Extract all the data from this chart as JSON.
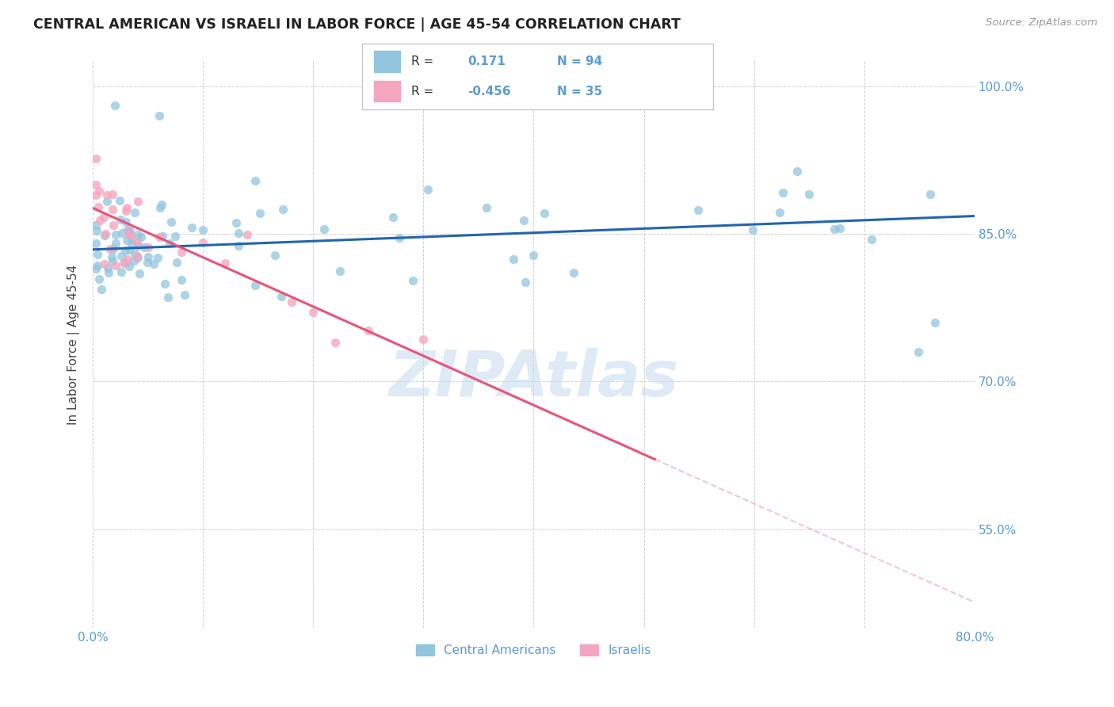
{
  "title": "CENTRAL AMERICAN VS ISRAELI IN LABOR FORCE | AGE 45-54 CORRELATION CHART",
  "source": "Source: ZipAtlas.com",
  "ylabel": "In Labor Force | Age 45-54",
  "x_min": 0.0,
  "x_max": 0.8,
  "y_min": 0.45,
  "y_max": 1.025,
  "y_ticks": [
    0.55,
    0.7,
    0.85,
    1.0
  ],
  "y_tick_labels": [
    "55.0%",
    "70.0%",
    "85.0%",
    "100.0%"
  ],
  "x_tick_pos": [
    0.0,
    0.1,
    0.2,
    0.3,
    0.4,
    0.5,
    0.6,
    0.7,
    0.8
  ],
  "x_tick_labels": [
    "0.0%",
    "",
    "",
    "",
    "",
    "",
    "",
    "",
    "80.0%"
  ],
  "blue_R": 0.171,
  "blue_N": 94,
  "pink_R": -0.456,
  "pink_N": 35,
  "blue_color": "#92C5DE",
  "pink_color": "#F4A6BE",
  "blue_line_color": "#2166AC",
  "pink_line_color": "#E8547A",
  "pink_dashed_color": "#F4C4D4",
  "grid_color": "#CCCCCC",
  "tick_color": "#5B9BD5",
  "label_color": "#444444",
  "watermark_color": "#C8DCF0",
  "legend_text_dark": "#333333",
  "blue_line_y0": 0.834,
  "blue_line_y1": 0.868,
  "pink_line_y0": 0.876,
  "pink_line_x_solid_end": 0.51,
  "pink_slope": -0.5
}
